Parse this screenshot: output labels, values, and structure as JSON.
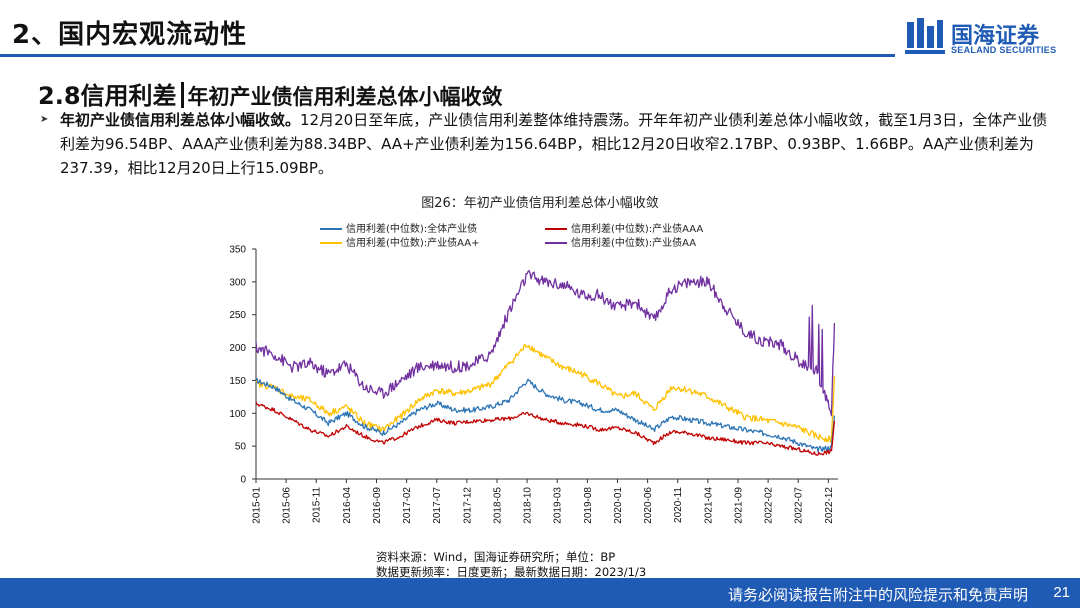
{
  "header": {
    "section_title": "2、国内宏观流动性",
    "logo_cn": "国海证券",
    "logo_en": "SEALAND SECURITIES"
  },
  "slide": {
    "subtitle_a": "2.8信用利差",
    "subtitle_b": "年初产业债信用利差总体小幅收敛",
    "bullet_bold": "年初产业债信用利差总体小幅收敛。",
    "bullet_text": "12月20日至年底，产业债信用利差整体维持震荡。开年年初产业债利差总体小幅收敛，截至1月3日，全体产业债利差为96.54BP、AAA产业债利差为88.34BP、AA+产业债利差为156.64BP，相比12月20日收窄2.17BP、0.93BP、1.66BP。AA产业债利差为237.39，相比12月20日上行15.09BP。",
    "figure_caption": "图26：年初产业债信用利差总体小幅收敛",
    "source_line1": "资料来源：Wind，国海证券研究所；单位：BP",
    "source_line2": "数据更新频率：日度更新；最新数据日期：2023/1/3"
  },
  "footer": {
    "disclaimer": "请务必阅读报告附注中的风险提示和免责声明",
    "page_number": "21"
  },
  "colors": {
    "brand_blue": "#1f5bb5",
    "series_all": "#2e75b6",
    "series_aaa": "#c00000",
    "series_aaplus": "#ffc000",
    "series_aa": "#7030a0"
  },
  "chart_data": {
    "type": "line",
    "title": "图26：年初产业债信用利差总体小幅收敛",
    "xlabel": "",
    "ylabel": "",
    "ylim": [
      0,
      350
    ],
    "yticks": [
      0,
      50,
      100,
      150,
      200,
      250,
      300,
      350
    ],
    "xlim": [
      2015.0,
      2023.05
    ],
    "x_ticks": [
      "2015-01",
      "2015-06",
      "2015-11",
      "2016-04",
      "2016-09",
      "2017-02",
      "2017-07",
      "2017-12",
      "2018-05",
      "2018-10",
      "2019-03",
      "2019-08",
      "2020-01",
      "2020-06",
      "2020-11",
      "2021-04",
      "2021-09",
      "2022-02",
      "2022-07",
      "2022-12"
    ],
    "legend_position": "top",
    "x": [
      2015.0,
      2015.25,
      2015.5,
      2015.75,
      2016.0,
      2016.25,
      2016.5,
      2016.75,
      2017.0,
      2017.25,
      2017.5,
      2017.75,
      2018.0,
      2018.25,
      2018.5,
      2018.75,
      2019.0,
      2019.25,
      2019.5,
      2019.75,
      2020.0,
      2020.25,
      2020.5,
      2020.75,
      2021.0,
      2021.25,
      2021.5,
      2021.75,
      2022.0,
      2022.25,
      2022.5,
      2022.75,
      2022.96,
      2023.0
    ],
    "series": [
      {
        "name": "信用利差(中位数):全体产业债",
        "color": "#2e75b6",
        "values": [
          150,
          140,
          120,
          105,
          85,
          100,
          80,
          70,
          85,
          105,
          115,
          105,
          105,
          110,
          120,
          150,
          130,
          120,
          115,
          105,
          105,
          90,
          75,
          95,
          90,
          85,
          80,
          75,
          70,
          65,
          55,
          45,
          48,
          96.54
        ]
      },
      {
        "name": "信用利差(中位数):产业债AAA",
        "color": "#c00000",
        "values": [
          115,
          105,
          90,
          75,
          65,
          80,
          65,
          55,
          65,
          80,
          90,
          85,
          88,
          90,
          92,
          100,
          90,
          85,
          82,
          75,
          78,
          70,
          55,
          72,
          70,
          62,
          60,
          55,
          55,
          50,
          45,
          38,
          42,
          88.34
        ]
      },
      {
        "name": "信用利差(中位数):产业债AA+",
        "color": "#ffc000",
        "values": [
          145,
          140,
          125,
          120,
          100,
          110,
          85,
          75,
          95,
          120,
          135,
          130,
          135,
          145,
          175,
          205,
          185,
          170,
          160,
          145,
          125,
          130,
          105,
          140,
          135,
          125,
          110,
          95,
          90,
          85,
          78,
          65,
          60,
          156.64
        ]
      },
      {
        "name": "信用利差(中位数):产业债AA",
        "color": "#7030a0",
        "values": [
          200,
          190,
          170,
          175,
          160,
          175,
          140,
          130,
          150,
          170,
          175,
          170,
          175,
          190,
          255,
          310,
          300,
          295,
          280,
          280,
          260,
          270,
          240,
          290,
          300,
          300,
          260,
          225,
          210,
          205,
          180,
          165,
          100,
          237.39
        ]
      }
    ]
  }
}
